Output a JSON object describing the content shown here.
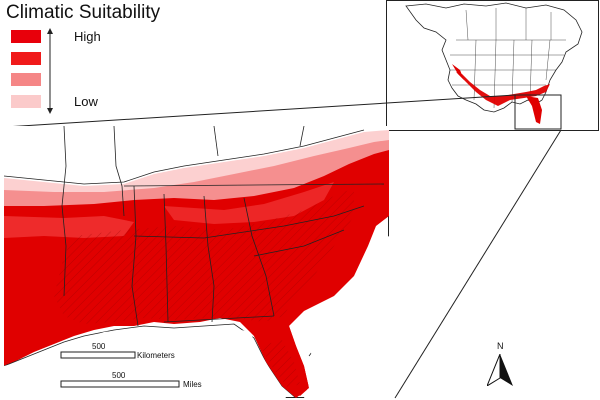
{
  "title": "Climatic Suitability",
  "legend": {
    "high_label": "High",
    "low_label": "Low",
    "classes": [
      {
        "color": "#e8000b"
      },
      {
        "color": "#f01a1a"
      },
      {
        "color": "#f58686"
      },
      {
        "color": "#fbcaca"
      }
    ]
  },
  "scale": {
    "km_value": "500",
    "km_unit": "Kilometers",
    "mi_value": "500",
    "mi_unit": "Miles"
  },
  "north_arrow": {
    "label": "N"
  },
  "colors": {
    "high": "#e00000",
    "mid_high": "#f03030",
    "mid_low": "#f58f8f",
    "low": "#fcd0d0",
    "boundary": "#222222"
  }
}
